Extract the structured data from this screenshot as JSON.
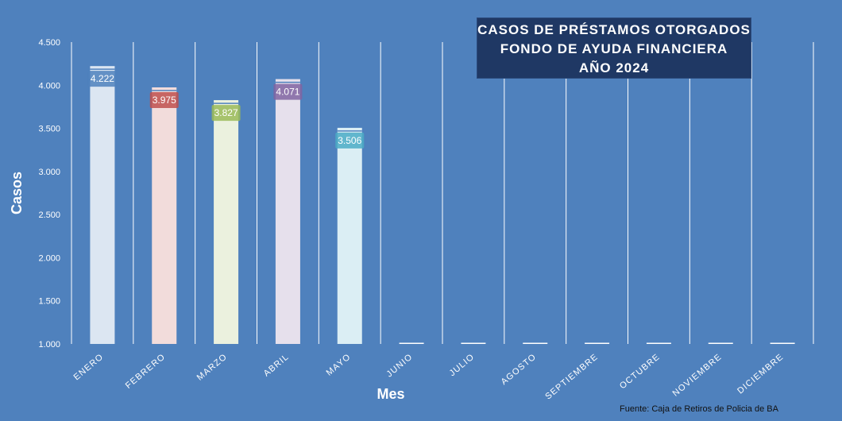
{
  "chart_data": {
    "type": "bar",
    "title_lines": [
      "CASOS DE PRÉSTAMOS OTORGADOS",
      "FONDO DE AYUDA FINANCIERA",
      "AÑO 2024"
    ],
    "xlabel": "Mes",
    "ylabel": "Casos",
    "ylim": [
      1000,
      4500
    ],
    "yticks": [
      "1.000",
      "1.500",
      "2.000",
      "2.500",
      "3.000",
      "3.500",
      "4.000",
      "4.500"
    ],
    "ytick_values": [
      1000,
      1500,
      2000,
      2500,
      3000,
      3500,
      4000,
      4500
    ],
    "categories": [
      "ENERO",
      "FEBRERO",
      "MARZO",
      "ABRIL",
      "MAYO",
      "JUNIO",
      "JULIO",
      "AGOSTO",
      "SEPTIEMBRE",
      "OCTUBRE",
      "NOVIEMBRE",
      "DICIEMBRE"
    ],
    "values": [
      4222,
      3975,
      3827,
      4071,
      3506,
      null,
      null,
      null,
      null,
      null,
      null,
      null
    ],
    "data_labels": [
      "4.222",
      "3.975",
      "3.827",
      "4.071",
      "3.506",
      "",
      "",
      "",
      "",
      "",
      "",
      ""
    ],
    "grid": "vertical",
    "source": "Fuente: Caja de Retiros de Policia de BA"
  },
  "colors": {
    "background": "#4f81bd",
    "bar_fills": [
      "#dce6f2",
      "#f2dcdb",
      "#ebf1de",
      "#e6e0ec",
      "#dbeef4"
    ],
    "label_fills": [
      "#4f81bd",
      "#c0504d",
      "#9bbb59",
      "#8064a2",
      "#4bacc6"
    ],
    "gridline": "#ffffff"
  }
}
